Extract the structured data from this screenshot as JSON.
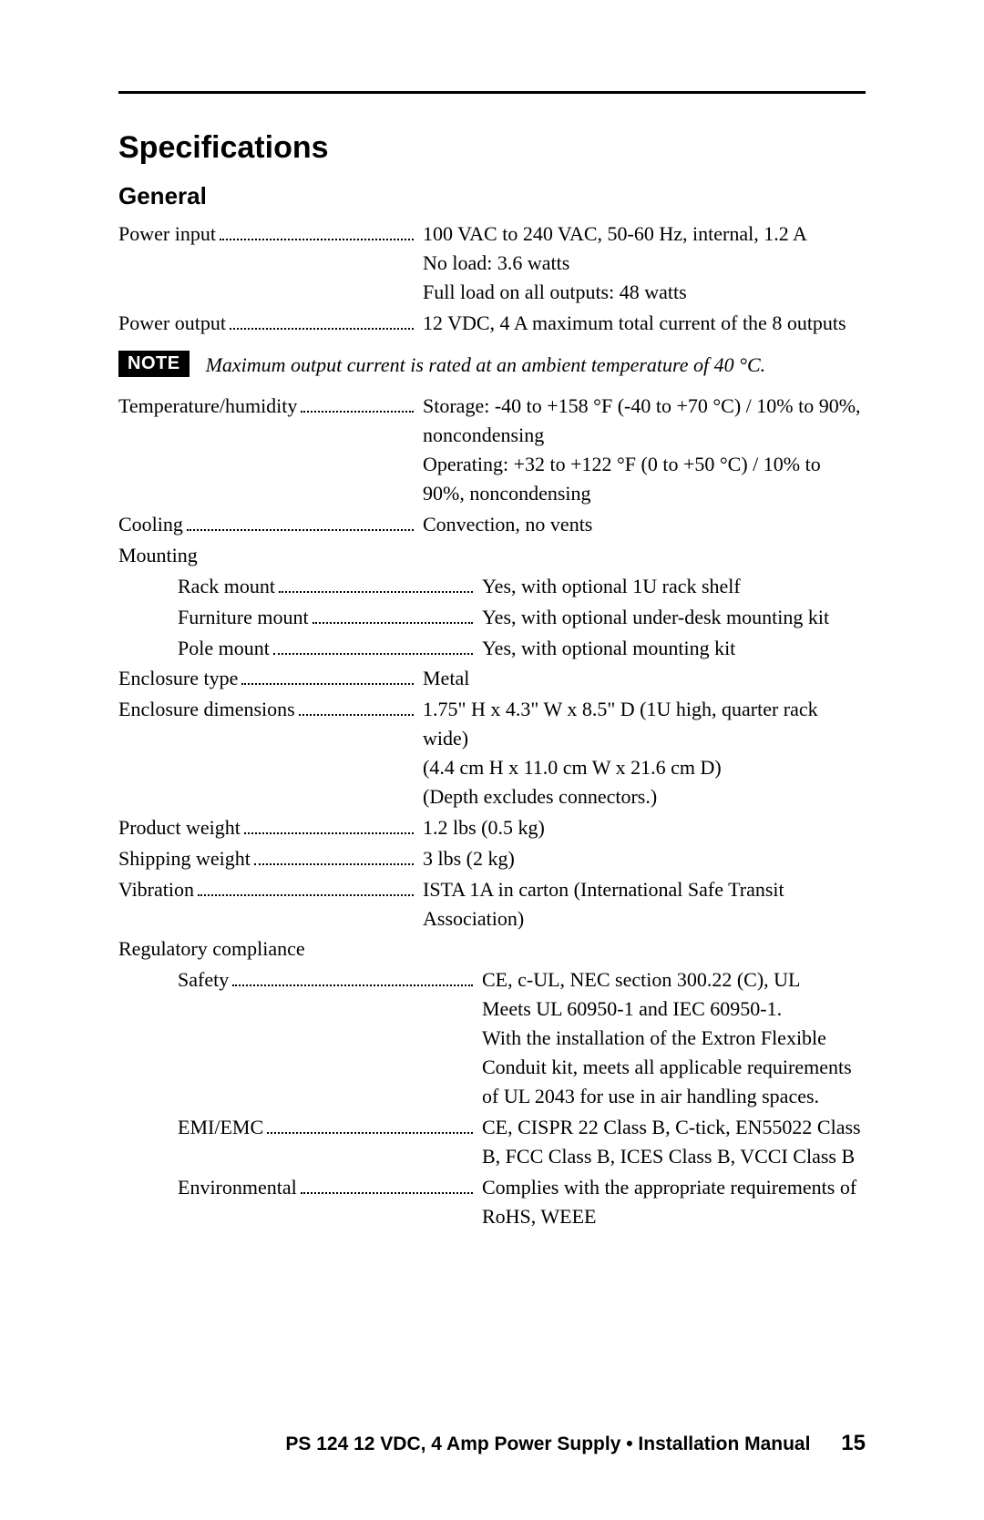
{
  "title": "Specifications",
  "section": "General",
  "note": {
    "badge": "NOTE",
    "text": "Maximum output current is rated at an ambient temperature of 40 °C."
  },
  "rows": [
    {
      "label": "Power input",
      "value": "100 VAC to 240 VAC, 50-60 Hz, internal, 1.2 A\nNo load: 3.6 watts\nFull load on all outputs: 48 watts",
      "indent": false
    },
    {
      "label": "Power output",
      "value": "12 VDC, 4 A maximum total current of the 8 outputs",
      "indent": false
    }
  ],
  "rows2": [
    {
      "label": "Temperature/humidity",
      "value": "Storage: -40 to +158 °F (-40 to +70 °C) / 10% to 90%, noncondensing\nOperating: +32 to +122 °F (0 to +50 °C) / 10% to 90%, noncondensing",
      "indent": false
    },
    {
      "label": "Cooling",
      "value": "Convection, no vents",
      "indent": false
    },
    {
      "header": "Mounting"
    },
    {
      "label": "Rack mount",
      "value": "Yes, with optional 1U rack shelf",
      "indent": true
    },
    {
      "label": "Furniture mount",
      "value": "Yes, with optional under-desk mounting kit",
      "indent": true
    },
    {
      "label": "Pole mount",
      "value": "Yes, with optional mounting kit",
      "indent": true
    },
    {
      "label": "Enclosure type",
      "value": "Metal",
      "indent": false
    },
    {
      "label": "Enclosure dimensions",
      "value": "1.75\" H x 4.3\" W x 8.5\" D (1U high, quarter rack wide)\n(4.4 cm H x 11.0 cm W x 21.6 cm D)\n(Depth excludes connectors.)",
      "indent": false
    },
    {
      "label": "Product weight",
      "value": "1.2 lbs (0.5 kg)",
      "indent": false
    },
    {
      "label": "Shipping weight",
      "value": "3 lbs (2 kg)",
      "indent": false
    },
    {
      "label": "Vibration",
      "value": "ISTA 1A in carton (International Safe Transit Association)",
      "indent": false
    },
    {
      "header": "Regulatory compliance"
    },
    {
      "label": "Safety",
      "value": "CE, c-UL, NEC section 300.22 (C), UL\nMeets UL 60950-1 and IEC 60950-1.\nWith the installation of the Extron Flexible Conduit kit, meets all applicable requirements of UL 2043 for use in air handling spaces.",
      "indent": true
    },
    {
      "label": "EMI/EMC",
      "value": "CE, CISPR 22 Class B, C-tick, EN55022 Class B, FCC Class B, ICES Class B, VCCI Class B",
      "indent": true
    },
    {
      "label": "Environmental",
      "value": "Complies with the appropriate requirements of RoHS, WEEE",
      "indent": true
    }
  ],
  "footer": {
    "text": "PS 124  12 VDC, 4 Amp Power Supply • Installation Manual",
    "page": "15"
  },
  "colors": {
    "text": "#000000",
    "background": "#ffffff"
  },
  "typography": {
    "title_fontsize": 34,
    "subtitle_fontsize": 26,
    "body_fontsize": 22,
    "footer_fontsize": 21
  }
}
